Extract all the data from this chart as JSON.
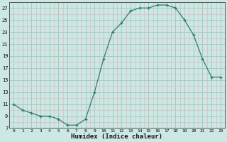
{
  "x": [
    0,
    1,
    2,
    3,
    4,
    5,
    6,
    7,
    8,
    9,
    10,
    11,
    12,
    13,
    14,
    15,
    16,
    17,
    18,
    19,
    20,
    21,
    22,
    23
  ],
  "y": [
    11,
    10,
    9.5,
    9,
    9,
    8.5,
    7.5,
    7.5,
    8.5,
    13,
    18.5,
    23,
    24.5,
    26.5,
    27,
    27,
    27.5,
    27.5,
    27,
    25,
    22.5,
    18.5,
    15.5,
    15.5
  ],
  "xlabel": "Humidex (Indice chaleur)",
  "xticks": [
    0,
    1,
    2,
    3,
    4,
    5,
    6,
    7,
    8,
    9,
    10,
    11,
    12,
    13,
    14,
    15,
    16,
    17,
    18,
    19,
    20,
    21,
    22,
    23
  ],
  "yticks": [
    7,
    9,
    11,
    13,
    15,
    17,
    19,
    21,
    23,
    25,
    27
  ],
  "ylim": [
    7,
    28
  ],
  "xlim": [
    -0.5,
    23.5
  ],
  "line_color": "#2e7d6e",
  "marker_color": "#2e7d6e",
  "bg_color": "#cce8e5",
  "grid_color_major": "#aac8c4",
  "grid_color_minor": "#dbbcbc"
}
